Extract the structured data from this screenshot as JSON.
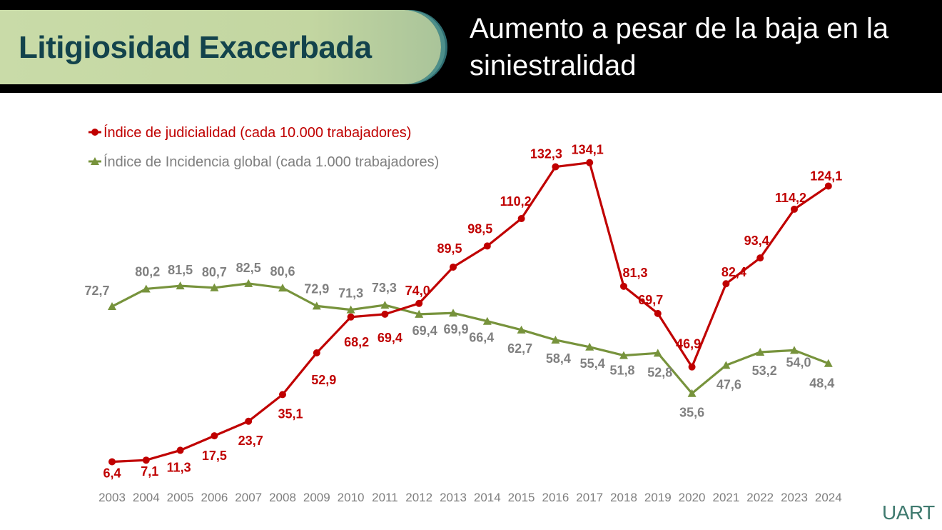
{
  "header": {
    "badge_title": "Litigiosidad Exacerbada",
    "subtitle_line1": "Aumento a pesar de la baja en la",
    "subtitle_line2": "siniestralidad"
  },
  "logo": "UART",
  "colors": {
    "judicialidad": "#c00000",
    "incidencia": "#77933c",
    "incidencia_label": "#808080",
    "badge_text": "#13434c"
  },
  "chart_data": {
    "type": "line",
    "title": "",
    "xlabel": "",
    "ylabel": "",
    "categories": [
      "2003",
      "2004",
      "2005",
      "2006",
      "2007",
      "2008",
      "2009",
      "2010",
      "2011",
      "2012",
      "2013",
      "2014",
      "2015",
      "2016",
      "2017",
      "2018",
      "2019",
      "2020",
      "2021",
      "2022",
      "2023",
      "2024"
    ],
    "ylim": [
      0,
      150
    ],
    "grid": false,
    "legend": "top-left",
    "series": [
      {
        "name": "Índice de judicialidad (cada 10.000 trabajadores)",
        "marker": "circle",
        "values": [
          6.4,
          7.1,
          11.3,
          17.5,
          23.7,
          35.1,
          52.9,
          68.2,
          69.4,
          74.0,
          89.5,
          98.5,
          110.2,
          132.3,
          134.1,
          81.3,
          69.7,
          46.9,
          82.4,
          93.4,
          114.2,
          124.1
        ],
        "labels": [
          "6,4",
          "7,1",
          "11,3",
          "17,5",
          "23,7",
          "35,1",
          "52,9",
          "68,2",
          "69,4",
          "74,0",
          "89,5",
          "98,5",
          "110,2",
          "132,3",
          "134,1",
          "81,3",
          "69,7",
          "46,9",
          "82,4",
          "93,4",
          "114,2",
          "124,1"
        ]
      },
      {
        "name": "Índice de Incidencia global (cada 1.000 trabajadores)",
        "marker": "triangle",
        "values": [
          72.7,
          80.2,
          81.5,
          80.7,
          82.5,
          80.6,
          72.9,
          71.3,
          73.3,
          69.4,
          69.9,
          66.4,
          62.7,
          58.4,
          55.4,
          51.8,
          52.8,
          35.6,
          47.6,
          53.2,
          54.0,
          48.4
        ],
        "labels": [
          "72,7",
          "80,2",
          "81,5",
          "80,7",
          "82,5",
          "80,6",
          "72,9",
          "71,3",
          "73,3",
          "69,4",
          "69,9",
          "66,4",
          "62,7",
          "58,4",
          "55,4",
          "51,8",
          "52,8",
          "35,6",
          "47,6",
          "53,2",
          "54,0",
          "48,4"
        ]
      }
    ]
  }
}
